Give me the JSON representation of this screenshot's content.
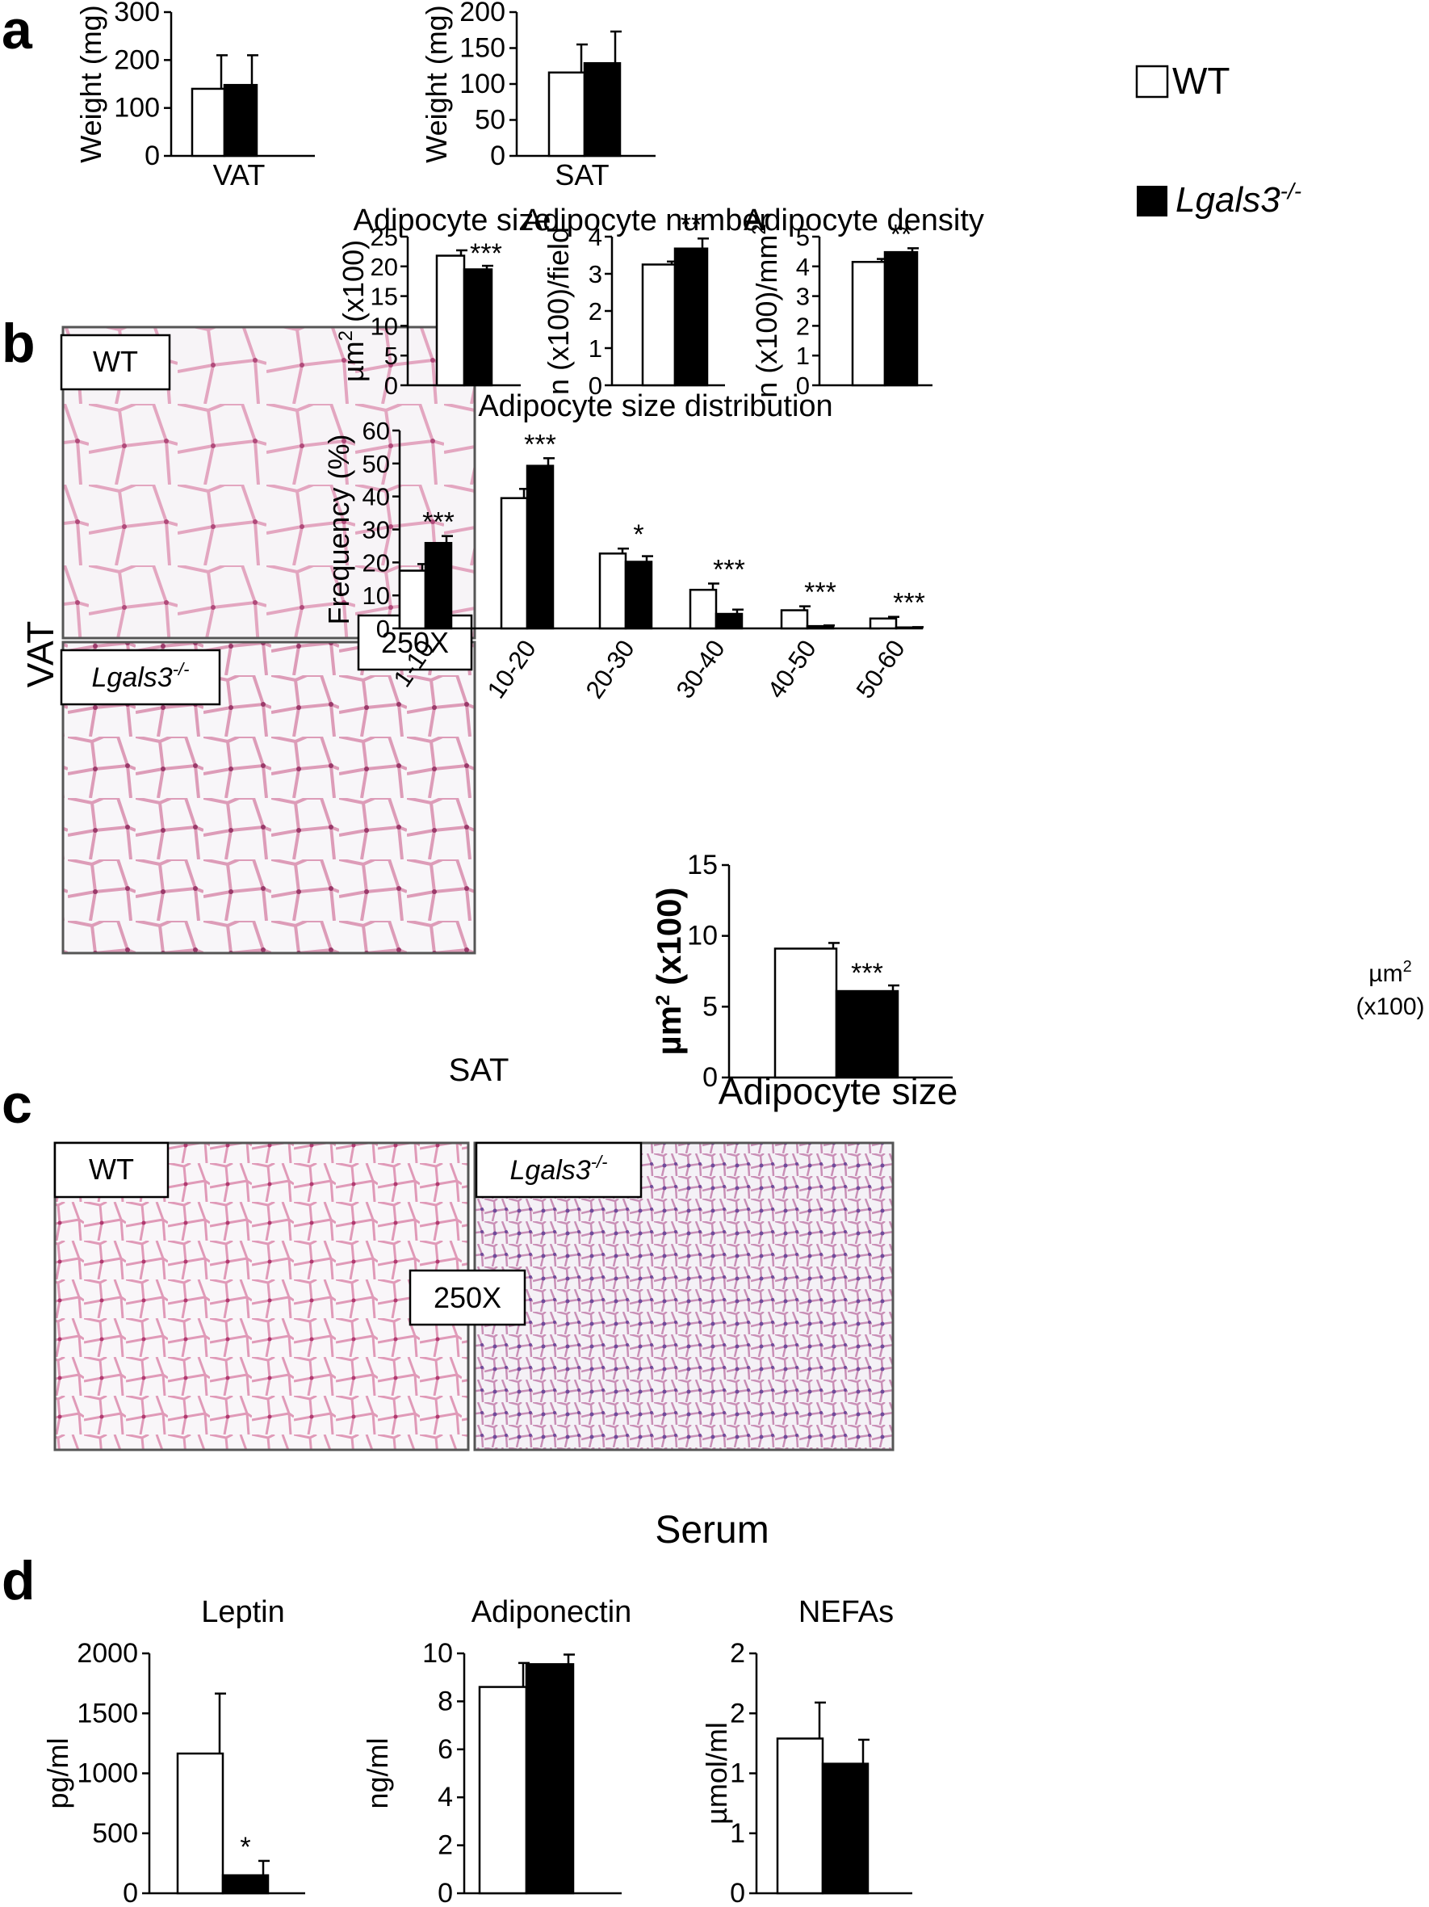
{
  "panels": {
    "a": "a",
    "b": "b",
    "c": "c",
    "d": "d"
  },
  "legend": {
    "wt": "WT",
    "ko": "Lgals3",
    "ko_sup": "-/-"
  },
  "colors": {
    "wt": "#ffffff",
    "ko": "#000000",
    "cell_wall": "#e3a6c0",
    "nuclei": "#7a4a9c",
    "background": "#dde3ea"
  },
  "labels": {
    "vat": "VAT",
    "sat": "SAT",
    "mag_vat": "250X",
    "mag_sat": "250X",
    "img_wt_vat": "WT",
    "img_ko_vat": "Lgals3",
    "img_ko_vat_sup": "-/-",
    "img_wt_sat": "WT",
    "img_ko_sat": "Lgals3",
    "img_ko_sat_sup": "-/-",
    "serum": "Serum",
    "dist_unit_1": "µm",
    "dist_unit_sup": "2",
    "dist_unit_2": "(x100)"
  },
  "chart_data": [
    {
      "id": "a1",
      "type": "bar",
      "title": "",
      "xlabel": "VAT",
      "ylabel": "Weight (mg)",
      "ylim": [
        0,
        300
      ],
      "yticks": [
        "0",
        "100",
        "200",
        "300"
      ],
      "categories": [
        "VAT"
      ],
      "series": [
        {
          "name": "WT",
          "values": [
            140
          ],
          "errors": [
            70
          ]
        },
        {
          "name": "Lgals3-/-",
          "values": [
            148
          ],
          "errors": [
            62
          ]
        }
      ]
    },
    {
      "id": "a2",
      "type": "bar",
      "title": "",
      "xlabel": "SAT",
      "ylabel": "Weight (mg)",
      "ylim": [
        0,
        200
      ],
      "yticks": [
        "0",
        "50",
        "100",
        "150",
        "200"
      ],
      "categories": [
        "SAT"
      ],
      "series": [
        {
          "name": "WT",
          "values": [
            116
          ],
          "errors": [
            39
          ]
        },
        {
          "name": "Lgals3-/-",
          "values": [
            129
          ],
          "errors": [
            44
          ]
        }
      ]
    },
    {
      "id": "b1",
      "type": "bar",
      "title": "Adipocyte size",
      "xlabel": "",
      "ylabel": "µm",
      "ylabel_sup": "2",
      "ylabel_rest": " (x100)",
      "ylim": [
        0,
        25
      ],
      "yticks": [
        "0",
        "5",
        "10",
        "15",
        "20",
        "25"
      ],
      "categories": [
        ""
      ],
      "series": [
        {
          "name": "WT",
          "values": [
            21.8
          ],
          "errors": [
            0.9
          ]
        },
        {
          "name": "Lgals3-/-",
          "values": [
            19.5
          ],
          "errors": [
            0.6
          ]
        }
      ],
      "annotations": [
        "***"
      ]
    },
    {
      "id": "b2",
      "type": "bar",
      "title": "Adipocyte number",
      "xlabel": "",
      "ylabel": "n (x100)/field",
      "ylim": [
        0,
        4
      ],
      "yticks": [
        "0",
        "1",
        "2",
        "3",
        "4"
      ],
      "categories": [
        ""
      ],
      "series": [
        {
          "name": "WT",
          "values": [
            3.25
          ],
          "errors": [
            0.08
          ]
        },
        {
          "name": "Lgals3-/-",
          "values": [
            3.68
          ],
          "errors": [
            0.27
          ]
        }
      ],
      "annotations": [
        "**"
      ]
    },
    {
      "id": "b3",
      "type": "bar",
      "title": "Adipocyte density",
      "xlabel": "",
      "ylabel": "n (x100)/mm",
      "ylabel_sup": "2",
      "ylim": [
        0,
        5
      ],
      "yticks": [
        "0",
        "1",
        "2",
        "3",
        "4",
        "5"
      ],
      "categories": [
        ""
      ],
      "series": [
        {
          "name": "WT",
          "values": [
            4.15
          ],
          "errors": [
            0.1
          ]
        },
        {
          "name": "Lgals3-/-",
          "values": [
            4.48
          ],
          "errors": [
            0.13
          ]
        }
      ],
      "annotations": [
        "**"
      ]
    },
    {
      "id": "b4",
      "type": "bar",
      "title": "Adipocyte size distribution",
      "xlabel": "",
      "ylabel": "Frequency (%)",
      "ylim": [
        0,
        60
      ],
      "yticks": [
        "0",
        "10",
        "20",
        "30",
        "40",
        "50",
        "60"
      ],
      "categories": [
        "1-10",
        "10-20",
        "20-30",
        "30-40",
        "40-50",
        "50-60"
      ],
      "series": [
        {
          "name": "WT",
          "values": [
            17.5,
            39.5,
            22.7,
            11.7,
            5.5,
            3.0
          ],
          "errors": [
            2.0,
            2.8,
            1.5,
            1.9,
            1.2,
            0.5
          ]
        },
        {
          "name": "Lgals3-/-",
          "values": [
            25.9,
            49.3,
            20.2,
            4.4,
            0.7,
            0.3
          ],
          "errors": [
            2.1,
            2.3,
            1.7,
            1.3,
            0.2,
            0.1
          ]
        }
      ],
      "annotations": [
        "***",
        "***",
        "*",
        "***",
        "***",
        "***"
      ]
    },
    {
      "id": "c1",
      "type": "bar",
      "title": "Adipocyte size",
      "xlabel": "",
      "ylabel": "µm",
      "ylabel_sup": "2",
      "ylabel_rest": " (x100)",
      "ylim": [
        0,
        15
      ],
      "yticks": [
        "0",
        "5",
        "10",
        "15"
      ],
      "categories": [
        ""
      ],
      "series": [
        {
          "name": "WT",
          "values": [
            9.1
          ],
          "errors": [
            0.4
          ]
        },
        {
          "name": "Lgals3-/-",
          "values": [
            6.1
          ],
          "errors": [
            0.4
          ]
        }
      ],
      "annotations": [
        "***"
      ]
    },
    {
      "id": "d1",
      "type": "bar",
      "title": "Leptin",
      "xlabel": "",
      "ylabel": "pg/ml",
      "ylim": [
        0,
        2000
      ],
      "yticks": [
        "0",
        "500",
        "1000",
        "1500",
        "2000"
      ],
      "categories": [
        ""
      ],
      "series": [
        {
          "name": "WT",
          "values": [
            1165
          ],
          "errors": [
            500
          ]
        },
        {
          "name": "Lgals3-/-",
          "values": [
            150
          ],
          "errors": [
            120
          ]
        }
      ],
      "annotations": [
        "*"
      ]
    },
    {
      "id": "d2",
      "type": "bar",
      "title": "Adiponectin",
      "xlabel": "",
      "ylabel": "ng/ml",
      "ylim": [
        0,
        10
      ],
      "yticks": [
        "0",
        "2",
        "4",
        "6",
        "8",
        "10"
      ],
      "categories": [
        ""
      ],
      "series": [
        {
          "name": "WT",
          "values": [
            8.6
          ],
          "errors": [
            1.0
          ]
        },
        {
          "name": "Lgals3-/-",
          "values": [
            9.55
          ],
          "errors": [
            0.4
          ]
        }
      ]
    },
    {
      "id": "d3",
      "type": "bar",
      "title": "NEFAs",
      "xlabel": "",
      "ylabel": "µmol/ml",
      "ylim": [
        0,
        2
      ],
      "yticks": [
        "0",
        "1",
        "1",
        "2",
        "2"
      ],
      "categories": [
        ""
      ],
      "series": [
        {
          "name": "WT",
          "values": [
            1.29
          ],
          "errors": [
            0.3
          ]
        },
        {
          "name": "Lgals3-/-",
          "values": [
            1.08
          ],
          "errors": [
            0.2
          ]
        }
      ]
    }
  ]
}
